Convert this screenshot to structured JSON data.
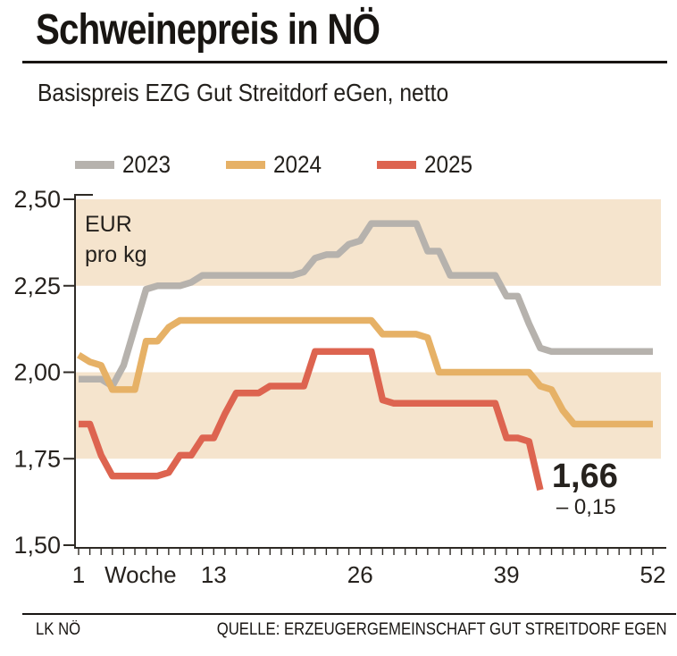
{
  "title": "Schweinepreis in NÖ",
  "subtitle": "Basispreis EZG Gut Streitdorf eGen, netto",
  "footer": {
    "left": "LK NÖ",
    "right": "QUELLE: ERZEUGERGEMEINSCHAFT GUT STREITDORF EGEN"
  },
  "colors": {
    "band": "#f5e4cd",
    "axis": "#2e2a25",
    "text": "#23201c"
  },
  "chart_data": {
    "type": "line",
    "title": "Schweinepreis in NÖ",
    "subtitle": "Basispreis EZG Gut Streitdorf eGen, netto",
    "unit_label": [
      "EUR",
      "pro kg"
    ],
    "xlabel": "Woche",
    "ylabel": "EUR pro kg",
    "xlim": [
      1,
      52
    ],
    "ylim": [
      1.5,
      2.5
    ],
    "bands": [
      [
        1.75,
        2.0
      ],
      [
        2.25,
        2.5
      ]
    ],
    "y_ticks": [
      {
        "value": 2.5,
        "label": "2,50"
      },
      {
        "value": 2.25,
        "label": "2,25"
      },
      {
        "value": 2.0,
        "label": "2,00"
      },
      {
        "value": 1.75,
        "label": "1,75"
      },
      {
        "value": 1.5,
        "label": "1,50"
      }
    ],
    "x_tick_labels": [
      {
        "pos": 1,
        "text": "1"
      },
      {
        "pos": 6.5,
        "text": "Woche"
      },
      {
        "pos": 13,
        "text": "13"
      },
      {
        "pos": 26,
        "text": "26"
      },
      {
        "pos": 39,
        "text": "39"
      },
      {
        "pos": 52,
        "text": "52"
      }
    ],
    "series": [
      {
        "name": "2023",
        "color": "#b6b2ad",
        "values": [
          1.98,
          1.98,
          1.98,
          1.96,
          2.02,
          2.13,
          2.24,
          2.25,
          2.25,
          2.25,
          2.26,
          2.28,
          2.28,
          2.28,
          2.28,
          2.28,
          2.28,
          2.28,
          2.28,
          2.28,
          2.29,
          2.33,
          2.34,
          2.34,
          2.37,
          2.38,
          2.43,
          2.43,
          2.43,
          2.43,
          2.43,
          2.35,
          2.35,
          2.28,
          2.28,
          2.28,
          2.28,
          2.28,
          2.22,
          2.22,
          2.14,
          2.07,
          2.06,
          2.06,
          2.06,
          2.06,
          2.06,
          2.06,
          2.06,
          2.06,
          2.06,
          2.06
        ]
      },
      {
        "name": "2024",
        "color": "#e6b166",
        "values": [
          2.05,
          2.03,
          2.02,
          1.95,
          1.95,
          1.95,
          2.09,
          2.09,
          2.13,
          2.15,
          2.15,
          2.15,
          2.15,
          2.15,
          2.15,
          2.15,
          2.15,
          2.15,
          2.15,
          2.15,
          2.15,
          2.15,
          2.15,
          2.15,
          2.15,
          2.15,
          2.15,
          2.11,
          2.11,
          2.11,
          2.11,
          2.1,
          2.0,
          2.0,
          2.0,
          2.0,
          2.0,
          2.0,
          2.0,
          2.0,
          2.0,
          1.96,
          1.95,
          1.89,
          1.85,
          1.85,
          1.85,
          1.85,
          1.85,
          1.85,
          1.85,
          1.85
        ]
      },
      {
        "name": "2025",
        "color": "#dd6450",
        "values": [
          1.85,
          1.85,
          1.76,
          1.7,
          1.7,
          1.7,
          1.7,
          1.7,
          1.71,
          1.76,
          1.76,
          1.81,
          1.81,
          1.88,
          1.94,
          1.94,
          1.94,
          1.96,
          1.96,
          1.96,
          1.96,
          2.06,
          2.06,
          2.06,
          2.06,
          2.06,
          2.06,
          1.92,
          1.91,
          1.91,
          1.91,
          1.91,
          1.91,
          1.91,
          1.91,
          1.91,
          1.91,
          1.91,
          1.81,
          1.81,
          1.8,
          1.66
        ]
      }
    ],
    "annotation": {
      "week": 42,
      "value": 1.66,
      "value_label": "1,66",
      "delta_label": "– 0,15",
      "value_color": "#d4543f",
      "delta_color": "#cf7a5d"
    },
    "legend_position": "top"
  }
}
